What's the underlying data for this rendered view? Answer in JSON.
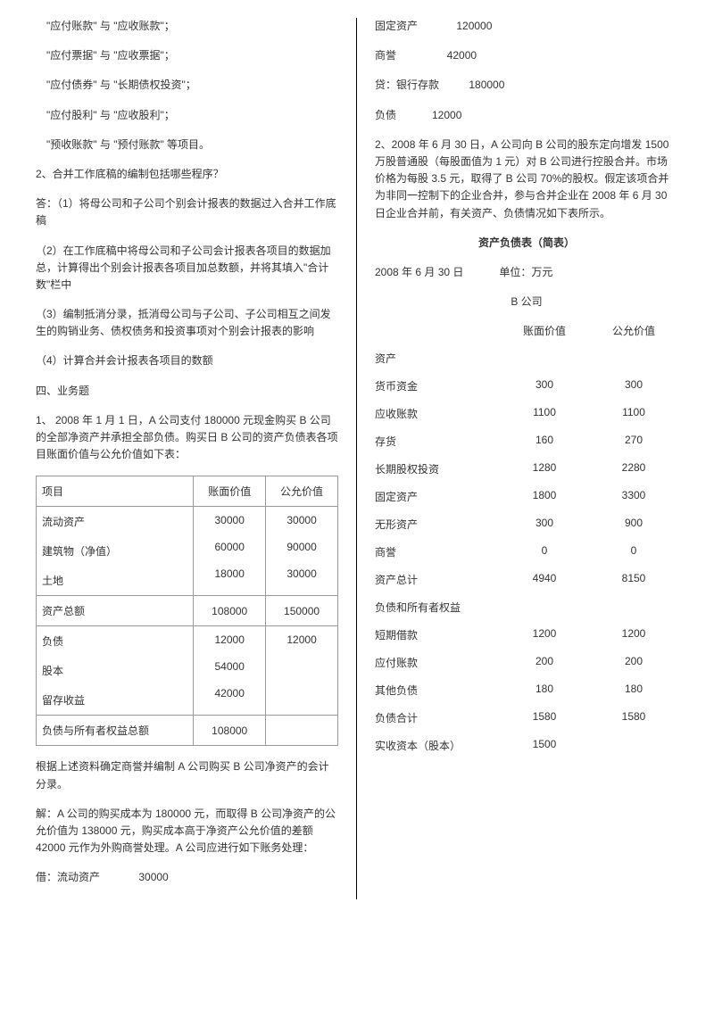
{
  "left": {
    "lines": [
      "\"应付账款\" 与 \"应收账款\"；",
      "\"应付票据\" 与 \"应收票据\"；",
      "\"应付债券\" 与 \"长期债权投资\"；",
      "\"应付股利\" 与 \"应收股利\"；",
      "\"预收账款\" 与 \"预付账款\" 等项目。"
    ],
    "q2": "2、合并工作底稿的编制包括哪些程序？",
    "a1": "答：（1）将母公司和子公司个别会计报表的数据过入合并工作底稿",
    "a2": "（2）在工作底稿中将母公司和子公司会计报表各项目的数据加总，计算得出个别会计报表各项目加总数额，并将其填入\"合计数\"栏中",
    "a3": "（3）编制抵消分录，抵消母公司与子公司、子公司相互之间发生的购销业务、债权债务和投资事项对个别会计报表的影响",
    "a4": "（4）计算合并会计报表各项目的数额",
    "sec4": "四、业务题",
    "q1desc": "1、 2008 年 1 月 1 日，A 公司支付 180000 元现金购买 B 公司的全部净资产并承担全部负债。购买日 B 公司的资产负债表各项目账面价值与公允价值如下表：",
    "table": {
      "headers": [
        "项目",
        "账面价值",
        "公允价值"
      ],
      "rows": [
        [
          "流动资产",
          "30000",
          "30000"
        ],
        [
          "建筑物（净值）",
          "60000",
          "90000"
        ],
        [
          "土地",
          "18000",
          "30000"
        ],
        [
          "资产总额",
          "108000",
          "150000"
        ],
        [
          "负债",
          "12000",
          "12000"
        ],
        [
          "股本",
          "54000",
          ""
        ],
        [
          "留存收益",
          "42000",
          ""
        ],
        [
          "负债与所有者权益总额",
          "108000",
          ""
        ]
      ]
    },
    "after1": "根据上述资料确定商誉并编制 A 公司购买 B 公司净资产的会计分录。",
    "after2": "解：A 公司的购买成本为 180000 元，而取得 B 公司净资产的公允价值为 138000 元，购买成本高于净资产公允价值的差额 42000 元作为外购商誉处理。A 公司应进行如下账务处理：",
    "entry1": "借：流动资产             30000"
  },
  "right": {
    "entries": [
      "固定资产             120000",
      "商誉                 42000",
      "贷：银行存款          180000",
      "负债            12000"
    ],
    "q2desc": "2、2008 年 6 月 30 日，A 公司向 B 公司的股东定向增发 1500 万股普通股（每股面值为 1 元）对 B 公司进行控股合并。市场价格为每股 3.5 元，取得了 B 公司 70%的股权。假定该项合并为非同一控制下的企业合并，参与合并企业在 2008 年 6 月 30 日企业合并前，有关资产、负债情况如下表所示。",
    "bsTitle": "资产负债表（简表）",
    "bsDate": "2008 年 6 月 30 日            单位：万元",
    "bsCompany": "B 公司",
    "bsHeaders": [
      "",
      "账面价值",
      "公允价值"
    ],
    "bsRows": [
      [
        "资产",
        "",
        ""
      ],
      [
        "货币资金",
        "300",
        "300"
      ],
      [
        "应收账款",
        "1100",
        "1100"
      ],
      [
        "存货",
        "160",
        "270"
      ],
      [
        "长期股权投资",
        "1280",
        "2280"
      ],
      [
        "固定资产",
        "1800",
        "3300"
      ],
      [
        "无形资产",
        "300",
        "900"
      ],
      [
        "商誉",
        "0",
        "0"
      ],
      [
        "资产总计",
        "4940",
        "8150"
      ],
      [
        "负债和所有者权益",
        "",
        ""
      ],
      [
        "短期借款",
        "1200",
        "1200"
      ],
      [
        "应付账款",
        "200",
        "200"
      ],
      [
        "其他负债",
        "180",
        "180"
      ],
      [
        "负债合计",
        "1580",
        "1580"
      ],
      [
        "实收资本（股本）",
        "1500",
        ""
      ]
    ]
  }
}
